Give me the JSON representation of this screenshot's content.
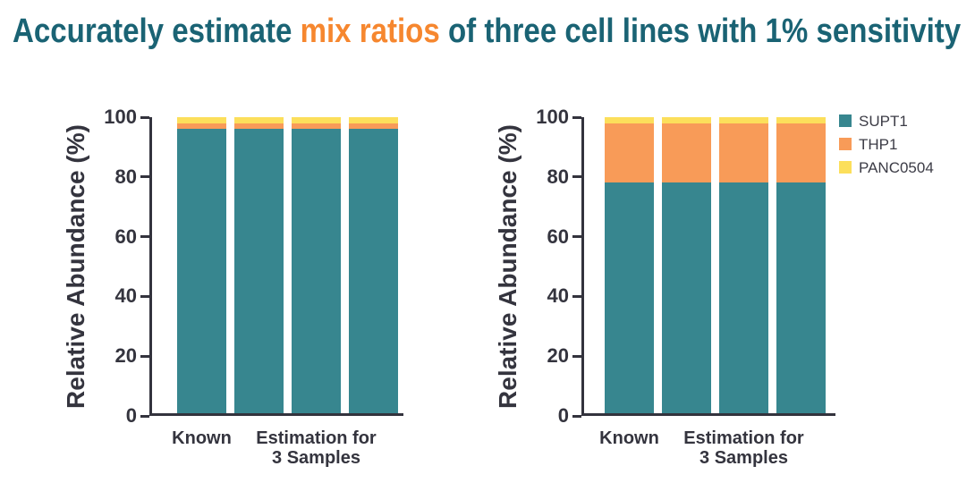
{
  "title": {
    "prefix": "Accurately estimate",
    "highlight": "mix ratios",
    "suffix": "of three cell lines with 1% sensitivity"
  },
  "palette": {
    "title_teal": "#1A6374",
    "title_orange": "#F6872F",
    "bar_teal": "#37868F",
    "bar_orange": "#F89B58",
    "bar_yellow": "#FCDF5B",
    "axis": "#33333D",
    "axis_text": "#34343E"
  },
  "legend": {
    "entries": [
      {
        "label": "SUPT1",
        "color": "#37868F"
      },
      {
        "label": "THP1",
        "color": "#F89B58"
      },
      {
        "label": "PANC0504",
        "color": "#FCDF5B"
      }
    ]
  },
  "chart_data": [
    {
      "type": "bar",
      "stacked": true,
      "title": "",
      "ylabel": "Relative Abundance (%)",
      "xlabel": "",
      "ylim": [
        0,
        100
      ],
      "yticks": [
        0,
        20,
        40,
        60,
        80,
        100
      ],
      "grid": false,
      "x_axis_groups": [
        {
          "lines": [
            "Known"
          ],
          "center_bar": 0
        },
        {
          "lines": [
            "Estimation for",
            "3 Samples"
          ],
          "center_bar": 2
        }
      ],
      "series": [
        {
          "name": "SUPT1",
          "color": "#37868F",
          "values": [
            96,
            96,
            96,
            96
          ]
        },
        {
          "name": "THP1",
          "color": "#F89B58",
          "values": [
            2,
            2,
            2,
            2
          ]
        },
        {
          "name": "PANC0504",
          "color": "#FCDF5B",
          "values": [
            2,
            2,
            2,
            2
          ]
        }
      ]
    },
    {
      "type": "bar",
      "stacked": true,
      "title": "",
      "ylabel": "Relative Abundance (%)",
      "xlabel": "",
      "ylim": [
        0,
        100
      ],
      "yticks": [
        0,
        20,
        40,
        60,
        80,
        100
      ],
      "grid": false,
      "legend_position": "right",
      "x_axis_groups": [
        {
          "lines": [
            "Known"
          ],
          "center_bar": 0
        },
        {
          "lines": [
            "Estimation for",
            "3 Samples"
          ],
          "center_bar": 2
        }
      ],
      "series": [
        {
          "name": "SUPT1",
          "color": "#37868F",
          "values": [
            78,
            78,
            78,
            78
          ]
        },
        {
          "name": "THP1",
          "color": "#F89B58",
          "values": [
            20,
            20,
            20,
            20
          ]
        },
        {
          "name": "PANC0504",
          "color": "#FCDF5B",
          "values": [
            2,
            2,
            2,
            2
          ]
        }
      ]
    }
  ]
}
